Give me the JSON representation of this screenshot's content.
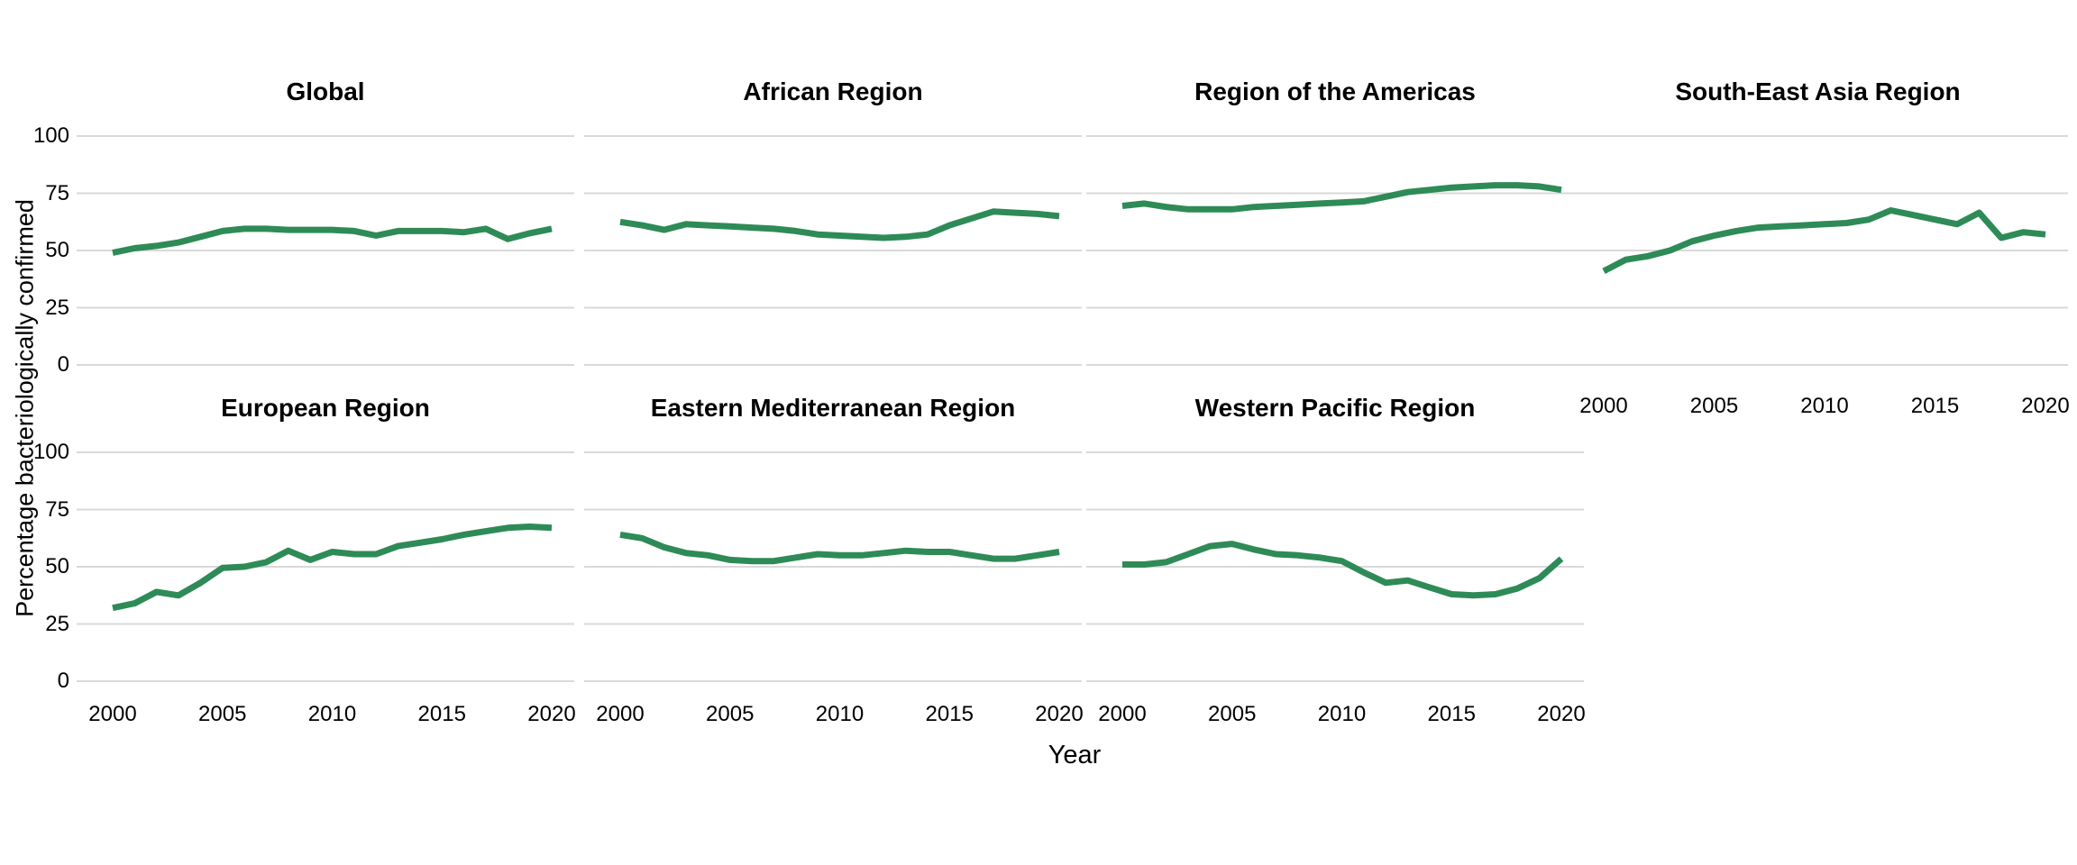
{
  "figure": {
    "y_axis_title": "Percentage bacteriologically confirmed",
    "x_axis_title": "Year",
    "colors": {
      "line": "#2e8b57",
      "grid": "#d9d9d9",
      "text": "#000000",
      "background": "#ffffff"
    },
    "y_ticks": [
      "100",
      "75",
      "50",
      "25",
      "0"
    ],
    "x_ticks": [
      "2000",
      "2005",
      "2010",
      "2015",
      "2020"
    ]
  },
  "chart_data": [
    {
      "type": "line",
      "title": "Global",
      "row": 0,
      "col": 0,
      "show_y_axis": true,
      "show_x_axis": false,
      "ylim": [
        0,
        100
      ],
      "grid": "horizontal-only",
      "legend": "none",
      "x": [
        2000,
        2001,
        2002,
        2003,
        2004,
        2005,
        2006,
        2007,
        2008,
        2009,
        2010,
        2011,
        2012,
        2013,
        2014,
        2015,
        2016,
        2017,
        2018,
        2019,
        2020
      ],
      "values": [
        49,
        51,
        52,
        53.5,
        56,
        58.5,
        59.5,
        59.5,
        59,
        59,
        59,
        58.5,
        56.5,
        58.5,
        58.5,
        58.5,
        58,
        59.5,
        55,
        57.5,
        59.5
      ]
    },
    {
      "type": "line",
      "title": "African Region",
      "row": 0,
      "col": 1,
      "show_y_axis": false,
      "show_x_axis": false,
      "ylim": [
        0,
        100
      ],
      "grid": "horizontal-only",
      "legend": "none",
      "x": [
        2000,
        2001,
        2002,
        2003,
        2004,
        2005,
        2006,
        2007,
        2008,
        2009,
        2010,
        2011,
        2012,
        2013,
        2014,
        2015,
        2016,
        2017,
        2018,
        2019,
        2020
      ],
      "values": [
        62.5,
        61,
        59,
        61.5,
        61,
        60.5,
        60,
        59.5,
        58.5,
        57,
        56.5,
        56,
        55.5,
        56,
        57,
        61,
        64,
        67,
        66.5,
        66,
        65
      ]
    },
    {
      "type": "line",
      "title": "Region of the Americas",
      "row": 0,
      "col": 2,
      "show_y_axis": false,
      "show_x_axis": false,
      "ylim": [
        0,
        100
      ],
      "grid": "horizontal-only",
      "legend": "none",
      "x": [
        2000,
        2001,
        2002,
        2003,
        2004,
        2005,
        2006,
        2007,
        2008,
        2009,
        2010,
        2011,
        2012,
        2013,
        2014,
        2015,
        2016,
        2017,
        2018,
        2019,
        2020
      ],
      "values": [
        69.5,
        70.5,
        69,
        68,
        68,
        68,
        69,
        69.5,
        70,
        70.5,
        71,
        71.5,
        73.5,
        75.5,
        76.5,
        77.5,
        78,
        78.5,
        78.5,
        78,
        76.5
      ]
    },
    {
      "type": "line",
      "title": "South-East Asia Region",
      "row": 0,
      "col": 3,
      "show_y_axis": false,
      "show_x_axis": true,
      "ylim": [
        0,
        100
      ],
      "grid": "horizontal-only",
      "legend": "none",
      "x": [
        2000,
        2001,
        2002,
        2003,
        2004,
        2005,
        2006,
        2007,
        2008,
        2009,
        2010,
        2011,
        2012,
        2013,
        2014,
        2015,
        2016,
        2017,
        2018,
        2019,
        2020
      ],
      "values": [
        41,
        46,
        47.5,
        50,
        54,
        56.5,
        58.5,
        60,
        60.5,
        61,
        61.5,
        62,
        63.5,
        67.5,
        65.5,
        63.5,
        61.5,
        66.5,
        55.5,
        58,
        57
      ]
    },
    {
      "type": "line",
      "title": "European Region",
      "row": 1,
      "col": 0,
      "show_y_axis": true,
      "show_x_axis": true,
      "ylim": [
        0,
        100
      ],
      "grid": "horizontal-only",
      "legend": "none",
      "x": [
        2000,
        2001,
        2002,
        2003,
        2004,
        2005,
        2006,
        2007,
        2008,
        2009,
        2010,
        2011,
        2012,
        2013,
        2014,
        2015,
        2016,
        2017,
        2018,
        2019,
        2020
      ],
      "values": [
        32,
        34,
        39,
        37.5,
        43,
        49.5,
        50,
        52,
        57,
        53,
        56.5,
        55.5,
        55.5,
        59,
        60.5,
        62,
        64,
        65.5,
        67,
        67.5,
        67
      ]
    },
    {
      "type": "line",
      "title": "Eastern Mediterranean Region",
      "row": 1,
      "col": 1,
      "show_y_axis": false,
      "show_x_axis": true,
      "ylim": [
        0,
        100
      ],
      "grid": "horizontal-only",
      "legend": "none",
      "x": [
        2000,
        2001,
        2002,
        2003,
        2004,
        2005,
        2006,
        2007,
        2008,
        2009,
        2010,
        2011,
        2012,
        2013,
        2014,
        2015,
        2016,
        2017,
        2018,
        2019,
        2020
      ],
      "values": [
        64,
        62.5,
        58.5,
        56,
        55,
        53,
        52.5,
        52.5,
        54,
        55.5,
        55,
        55,
        56,
        57,
        56.5,
        56.5,
        55,
        53.5,
        53.5,
        55,
        56.5
      ]
    },
    {
      "type": "line",
      "title": "Western Pacific Region",
      "row": 1,
      "col": 2,
      "show_y_axis": false,
      "show_x_axis": true,
      "ylim": [
        0,
        100
      ],
      "grid": "horizontal-only",
      "legend": "none",
      "x": [
        2000,
        2001,
        2002,
        2003,
        2004,
        2005,
        2006,
        2007,
        2008,
        2009,
        2010,
        2011,
        2012,
        2013,
        2014,
        2015,
        2016,
        2017,
        2018,
        2019,
        2020
      ],
      "values": [
        51,
        51,
        52,
        55.5,
        59,
        60,
        57.5,
        55.5,
        55,
        54,
        52.5,
        47.5,
        43,
        44,
        41,
        38,
        37.5,
        38,
        40.5,
        45,
        53.5
      ]
    }
  ]
}
